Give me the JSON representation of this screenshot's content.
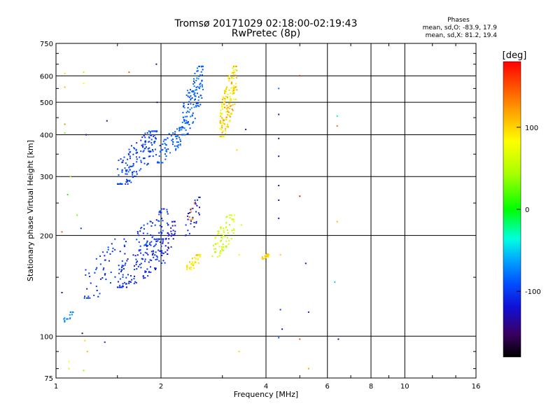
{
  "chart_data": {
    "type": "scatter",
    "title": "Tromsø 20171029 02:18:00-02:19:43",
    "subtitle": "RwPretec (8p)",
    "xlabel": "Frequency [MHz]",
    "ylabel": "Stationary phase Virtual Height [km]",
    "x_scale": "log",
    "y_scale": "log",
    "xlim": [
      1,
      16
    ],
    "ylim": [
      75,
      750
    ],
    "x_ticks": [
      1,
      2,
      4,
      6,
      8,
      10,
      16
    ],
    "x_tick_labels": [
      "1",
      "2",
      "4",
      "6",
      "8",
      "10",
      "16"
    ],
    "y_ticks": [
      75,
      100,
      200,
      300,
      400,
      500,
      600,
      750
    ],
    "y_tick_labels": [
      "75",
      "100",
      "200",
      "300",
      "400",
      "500",
      "600",
      "750"
    ],
    "grid": true,
    "stats": {
      "header": "Phases",
      "o_line": "mean, sd,O: -83.9, 17.9",
      "x_line": "mean, sd,X:  81.2, 19.4"
    },
    "colorbar": {
      "label": "[deg]",
      "min": -180,
      "max": 180,
      "ticks": [
        100,
        0,
        -100
      ],
      "tick_labels": [
        "100",
        "0",
        "-100"
      ]
    },
    "clusters": [
      {
        "f": [
          1.5,
          1.95
        ],
        "h": [
          285,
          410
        ],
        "phase": [
          -110,
          -85
        ],
        "n": 160
      },
      {
        "f": [
          1.95,
          2.3
        ],
        "h": [
          330,
          420
        ],
        "phase": [
          -100,
          -75
        ],
        "n": 70
      },
      {
        "f": [
          2.3,
          2.65
        ],
        "h": [
          400,
          640
        ],
        "phase": [
          -100,
          -70
        ],
        "n": 130
      },
      {
        "f": [
          2.95,
          3.3
        ],
        "h": [
          395,
          640
        ],
        "phase": [
          60,
          130
        ],
        "n": 170
      },
      {
        "f": [
          1.05,
          1.12
        ],
        "h": [
          110,
          118
        ],
        "phase": [
          -80,
          -60
        ],
        "n": 15
      },
      {
        "f": [
          1.2,
          1.6
        ],
        "h": [
          130,
          195
        ],
        "phase": [
          -115,
          -90
        ],
        "n": 60
      },
      {
        "f": [
          1.5,
          2.1
        ],
        "h": [
          140,
          195
        ],
        "phase": [
          -120,
          -95
        ],
        "n": 140
      },
      {
        "f": [
          1.7,
          2.1
        ],
        "h": [
          180,
          240
        ],
        "phase": [
          -120,
          -80
        ],
        "n": 60
      },
      {
        "f": [
          2.05,
          2.2
        ],
        "h": [
          175,
          220
        ],
        "phase": [
          -135,
          -110
        ],
        "n": 30
      },
      {
        "f": [
          2.35,
          2.6
        ],
        "h": [
          155,
          175
        ],
        "phase": [
          80,
          110
        ],
        "n": 40
      },
      {
        "f": [
          2.35,
          2.6
        ],
        "h": [
          200,
          260
        ],
        "phase": [
          -130,
          -100
        ],
        "n": 30
      },
      {
        "f": [
          2.4,
          2.5
        ],
        "h": [
          210,
          250
        ],
        "phase": [
          120,
          150
        ],
        "n": 8
      },
      {
        "f": [
          2.8,
          3.25
        ],
        "h": [
          170,
          230
        ],
        "phase": [
          40,
          80
        ],
        "n": 70
      },
      {
        "f": [
          3.9,
          4.1
        ],
        "h": [
          170,
          176
        ],
        "phase": [
          90,
          115
        ],
        "n": 25
      }
    ],
    "points": [
      {
        "x": 1.06,
        "y": 610,
        "phase": 95
      },
      {
        "x": 1.2,
        "y": 615,
        "phase": 45
      },
      {
        "x": 1.06,
        "y": 555,
        "phase": 110
      },
      {
        "x": 1.2,
        "y": 570,
        "phase": 80
      },
      {
        "x": 1.06,
        "y": 430,
        "phase": 130
      },
      {
        "x": 1.06,
        "y": 405,
        "phase": 30
      },
      {
        "x": 1.22,
        "y": 400,
        "phase": -120
      },
      {
        "x": 1.1,
        "y": 300,
        "phase": 40
      },
      {
        "x": 1.08,
        "y": 265,
        "phase": 10
      },
      {
        "x": 1.15,
        "y": 230,
        "phase": 30
      },
      {
        "x": 1.04,
        "y": 205,
        "phase": 150
      },
      {
        "x": 1.18,
        "y": 210,
        "phase": -100
      },
      {
        "x": 1.04,
        "y": 135,
        "phase": -150
      },
      {
        "x": 1.19,
        "y": 102,
        "phase": -150
      },
      {
        "x": 1.21,
        "y": 97,
        "phase": 100
      },
      {
        "x": 1.09,
        "y": 84,
        "phase": 80
      },
      {
        "x": 1.09,
        "y": 80,
        "phase": 60
      },
      {
        "x": 1.2,
        "y": 79,
        "phase": 40
      },
      {
        "x": 1.23,
        "y": 90,
        "phase": 110
      },
      {
        "x": 1.38,
        "y": 96,
        "phase": -110
      },
      {
        "x": 1.4,
        "y": 440,
        "phase": -140
      },
      {
        "x": 1.62,
        "y": 615,
        "phase": 150
      },
      {
        "x": 1.95,
        "y": 500,
        "phase": -140
      },
      {
        "x": 1.94,
        "y": 650,
        "phase": -140
      },
      {
        "x": 3.3,
        "y": 360,
        "phase": 100
      },
      {
        "x": 3.5,
        "y": 415,
        "phase": -120
      },
      {
        "x": 3.4,
        "y": 215,
        "phase": 60
      },
      {
        "x": 3.35,
        "y": 175,
        "phase": 70
      },
      {
        "x": 3.35,
        "y": 90,
        "phase": 100
      },
      {
        "x": 4.35,
        "y": 550,
        "phase": -80
      },
      {
        "x": 4.35,
        "y": 460,
        "phase": -140
      },
      {
        "x": 4.35,
        "y": 390,
        "phase": -150
      },
      {
        "x": 4.35,
        "y": 345,
        "phase": -130
      },
      {
        "x": 4.35,
        "y": 282,
        "phase": -140
      },
      {
        "x": 4.35,
        "y": 255,
        "phase": -130
      },
      {
        "x": 4.35,
        "y": 225,
        "phase": -120
      },
      {
        "x": 4.4,
        "y": 175,
        "phase": 100
      },
      {
        "x": 4.4,
        "y": 120,
        "phase": -100
      },
      {
        "x": 4.45,
        "y": 105,
        "phase": -120
      },
      {
        "x": 4.35,
        "y": 99,
        "phase": -90
      },
      {
        "x": 5.0,
        "y": 600,
        "phase": 170
      },
      {
        "x": 5.0,
        "y": 262,
        "phase": 175
      },
      {
        "x": 5.0,
        "y": 98,
        "phase": 150
      },
      {
        "x": 5.2,
        "y": 165,
        "phase": -120
      },
      {
        "x": 5.3,
        "y": 118,
        "phase": -110
      },
      {
        "x": 5.3,
        "y": 80,
        "phase": 120
      },
      {
        "x": 6.4,
        "y": 455,
        "phase": -20
      },
      {
        "x": 6.4,
        "y": 425,
        "phase": 140
      },
      {
        "x": 6.4,
        "y": 220,
        "phase": 110
      },
      {
        "x": 6.3,
        "y": 145,
        "phase": -50
      },
      {
        "x": 6.45,
        "y": 98,
        "phase": -130
      }
    ]
  }
}
